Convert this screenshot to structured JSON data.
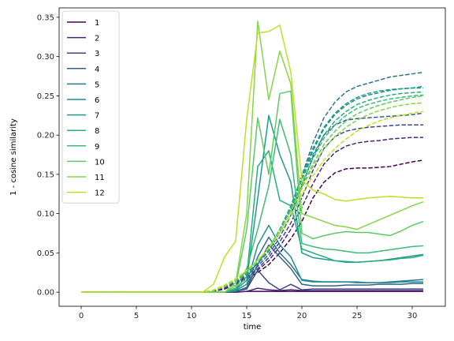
{
  "chart_data": {
    "type": "line",
    "xlabel": "time",
    "ylabel": "1 - cosine similarity",
    "xlim": [
      -2.0,
      33.0
    ],
    "ylim": [
      -0.018,
      0.362
    ],
    "xticks": [
      0,
      5,
      10,
      15,
      20,
      25,
      30
    ],
    "yticks": [
      0.0,
      0.05,
      0.1,
      0.15,
      0.2,
      0.25,
      0.3,
      0.35
    ],
    "ytick_labels": [
      "0.00",
      "0.05",
      "0.10",
      "0.15",
      "0.20",
      "0.25",
      "0.30",
      "0.35"
    ],
    "grid": false,
    "legend_position": "upper-left",
    "x": [
      0,
      1,
      2,
      3,
      4,
      5,
      6,
      7,
      8,
      9,
      10,
      11,
      12,
      13,
      14,
      15,
      16,
      17,
      18,
      19,
      20,
      21,
      22,
      23,
      24,
      25,
      26,
      27,
      28,
      29,
      30,
      31
    ],
    "series": [
      {
        "name": "1",
        "color": "#440154",
        "solid": [
          0,
          0,
          0,
          0,
          0,
          0,
          0,
          0,
          0,
          0,
          0,
          0,
          0,
          0,
          0,
          0.001,
          0.001,
          0.001,
          0.001,
          0.001,
          0.001,
          0.001,
          0.001,
          0.001,
          0.001,
          0.001,
          0.001,
          0.001,
          0.001,
          0.001,
          0.001,
          0.001
        ],
        "dashed": [
          0,
          0,
          0,
          0,
          0,
          0,
          0,
          0,
          0,
          0,
          0,
          0,
          0.001,
          0.004,
          0.01,
          0.017,
          0.025,
          0.035,
          0.05,
          0.068,
          0.09,
          0.12,
          0.14,
          0.152,
          0.157,
          0.158,
          0.158,
          0.159,
          0.16,
          0.163,
          0.166,
          0.168
        ]
      },
      {
        "name": "2",
        "color": "#482475",
        "solid": [
          0,
          0,
          0,
          0,
          0,
          0,
          0,
          0,
          0,
          0,
          0,
          0,
          0,
          0,
          0,
          0.001,
          0.005,
          0.003,
          0.002,
          0.003,
          0.002,
          0.002,
          0.002,
          0.002,
          0.002,
          0.002,
          0.002,
          0.002,
          0.002,
          0.002,
          0.002,
          0.002
        ],
        "dashed": [
          0,
          0,
          0,
          0,
          0,
          0,
          0,
          0,
          0,
          0,
          0,
          0,
          0.002,
          0.005,
          0.011,
          0.019,
          0.028,
          0.04,
          0.058,
          0.08,
          0.108,
          0.138,
          0.163,
          0.178,
          0.186,
          0.19,
          0.192,
          0.193,
          0.195,
          0.196,
          0.197,
          0.197
        ]
      },
      {
        "name": "3",
        "color": "#414487",
        "solid": [
          0,
          0,
          0,
          0,
          0,
          0,
          0,
          0,
          0,
          0,
          0,
          0,
          0,
          0,
          0.001,
          0.004,
          0.028,
          0.012,
          0.003,
          0.01,
          0.003,
          0.004,
          0.004,
          0.004,
          0.004,
          0.004,
          0.004,
          0.004,
          0.004,
          0.004,
          0.004,
          0.004
        ],
        "dashed": [
          0,
          0,
          0,
          0,
          0,
          0,
          0,
          0,
          0,
          0,
          0,
          0,
          0.002,
          0.006,
          0.012,
          0.02,
          0.03,
          0.044,
          0.064,
          0.088,
          0.12,
          0.155,
          0.183,
          0.198,
          0.205,
          0.208,
          0.21,
          0.211,
          0.212,
          0.213,
          0.213,
          0.213
        ]
      },
      {
        "name": "4",
        "color": "#355f8d",
        "solid": [
          0,
          0,
          0,
          0,
          0,
          0,
          0,
          0,
          0,
          0,
          0,
          0,
          0,
          0,
          0.001,
          0.005,
          0.035,
          0.06,
          0.045,
          0.03,
          0.01,
          0.008,
          0.008,
          0.008,
          0.009,
          0.009,
          0.009,
          0.01,
          0.01,
          0.01,
          0.011,
          0.011
        ],
        "dashed": [
          0,
          0,
          0,
          0,
          0,
          0,
          0,
          0,
          0,
          0,
          0,
          0,
          0.002,
          0.006,
          0.013,
          0.022,
          0.033,
          0.048,
          0.07,
          0.098,
          0.135,
          0.172,
          0.2,
          0.213,
          0.219,
          0.221,
          0.222,
          0.223,
          0.224,
          0.225,
          0.226,
          0.228
        ]
      },
      {
        "name": "5",
        "color": "#2c728e",
        "solid": [
          0,
          0,
          0,
          0,
          0,
          0,
          0,
          0,
          0,
          0,
          0,
          0,
          0,
          0,
          0.001,
          0.006,
          0.045,
          0.07,
          0.05,
          0.035,
          0.016,
          0.014,
          0.013,
          0.013,
          0.013,
          0.012,
          0.012,
          0.012,
          0.013,
          0.014,
          0.015,
          0.016
        ],
        "dashed": [
          0,
          0,
          0,
          0,
          0,
          0,
          0,
          0,
          0,
          0,
          0,
          0,
          0.002,
          0.007,
          0.014,
          0.024,
          0.036,
          0.052,
          0.076,
          0.106,
          0.148,
          0.19,
          0.222,
          0.242,
          0.255,
          0.262,
          0.266,
          0.27,
          0.274,
          0.276,
          0.278,
          0.28
        ]
      },
      {
        "name": "6",
        "color": "#21918c",
        "solid": [
          0,
          0,
          0,
          0,
          0,
          0,
          0,
          0,
          0,
          0,
          0,
          0,
          0,
          0,
          0.002,
          0.01,
          0.06,
          0.085,
          0.06,
          0.045,
          0.015,
          0.013,
          0.013,
          0.013,
          0.013,
          0.013,
          0.012,
          0.012,
          0.012,
          0.013,
          0.013,
          0.013
        ],
        "dashed": [
          0,
          0,
          0,
          0,
          0,
          0,
          0,
          0,
          0,
          0,
          0,
          0,
          0.002,
          0.007,
          0.015,
          0.025,
          0.037,
          0.054,
          0.078,
          0.108,
          0.145,
          0.18,
          0.208,
          0.226,
          0.238,
          0.246,
          0.251,
          0.254,
          0.257,
          0.259,
          0.26,
          0.262
        ]
      },
      {
        "name": "7",
        "color": "#1e9b8a",
        "solid": [
          0,
          0,
          0,
          0,
          0,
          0,
          0,
          0,
          0,
          0,
          0,
          0,
          0,
          0,
          0.003,
          0.015,
          0.12,
          0.225,
          0.175,
          0.14,
          0.05,
          0.044,
          0.042,
          0.04,
          0.038,
          0.038,
          0.039,
          0.04,
          0.042,
          0.044,
          0.046,
          0.048
        ],
        "dashed": [
          0,
          0,
          0,
          0,
          0,
          0,
          0,
          0,
          0,
          0,
          0,
          0,
          0.002,
          0.007,
          0.015,
          0.025,
          0.038,
          0.055,
          0.08,
          0.11,
          0.148,
          0.183,
          0.21,
          0.228,
          0.24,
          0.248,
          0.253,
          0.256,
          0.258,
          0.259,
          0.26,
          0.26
        ]
      },
      {
        "name": "8",
        "color": "#26ad81",
        "solid": [
          0,
          0,
          0,
          0,
          0,
          0,
          0,
          0,
          0,
          0,
          0,
          0,
          0,
          0,
          0.004,
          0.02,
          0.16,
          0.18,
          0.117,
          0.11,
          0.055,
          0.05,
          0.045,
          0.04,
          0.039,
          0.038,
          0.039,
          0.04,
          0.041,
          0.043,
          0.044,
          0.047
        ],
        "dashed": [
          0,
          0,
          0,
          0,
          0,
          0,
          0,
          0,
          0,
          0,
          0,
          0,
          0.002,
          0.007,
          0.015,
          0.026,
          0.039,
          0.056,
          0.08,
          0.108,
          0.143,
          0.175,
          0.2,
          0.218,
          0.23,
          0.239,
          0.244,
          0.248,
          0.251,
          0.253,
          0.254,
          0.255
        ]
      },
      {
        "name": "9",
        "color": "#3bbb75",
        "solid": [
          0,
          0,
          0,
          0,
          0,
          0,
          0,
          0,
          0,
          0,
          0,
          0,
          0,
          0,
          0.005,
          0.03,
          0.08,
          0.135,
          0.22,
          0.175,
          0.062,
          0.058,
          0.055,
          0.054,
          0.052,
          0.05,
          0.05,
          0.052,
          0.054,
          0.056,
          0.058,
          0.059
        ],
        "dashed": [
          0,
          0,
          0,
          0,
          0,
          0,
          0,
          0,
          0,
          0,
          0,
          0,
          0.002,
          0.007,
          0.015,
          0.026,
          0.039,
          0.055,
          0.078,
          0.105,
          0.138,
          0.17,
          0.196,
          0.213,
          0.225,
          0.234,
          0.239,
          0.243,
          0.246,
          0.248,
          0.25,
          0.251
        ]
      },
      {
        "name": "10",
        "color": "#5ec962",
        "solid": [
          0,
          0,
          0,
          0,
          0,
          0,
          0,
          0,
          0,
          0,
          0,
          0,
          0,
          0,
          0.008,
          0.08,
          0.222,
          0.15,
          0.253,
          0.256,
          0.075,
          0.068,
          0.072,
          0.075,
          0.077,
          0.076,
          0.076,
          0.074,
          0.072,
          0.078,
          0.085,
          0.09
        ],
        "dashed": [
          0,
          0,
          0,
          0,
          0,
          0,
          0,
          0,
          0,
          0,
          0,
          0,
          0.002,
          0.007,
          0.015,
          0.026,
          0.039,
          0.055,
          0.077,
          0.103,
          0.134,
          0.163,
          0.188,
          0.205,
          0.218,
          0.227,
          0.233,
          0.238,
          0.242,
          0.245,
          0.248,
          0.25
        ]
      },
      {
        "name": "11",
        "color": "#86d549",
        "solid": [
          0,
          0,
          0,
          0,
          0,
          0,
          0,
          0,
          0,
          0,
          0,
          0,
          0,
          0,
          0.012,
          0.1,
          0.345,
          0.245,
          0.307,
          0.265,
          0.1,
          0.095,
          0.09,
          0.085,
          0.083,
          0.08,
          0.086,
          0.092,
          0.098,
          0.104,
          0.11,
          0.115
        ],
        "dashed": [
          0,
          0,
          0,
          0,
          0,
          0,
          0,
          0,
          0,
          0,
          0,
          0,
          0.002,
          0.008,
          0.016,
          0.027,
          0.04,
          0.057,
          0.078,
          0.103,
          0.132,
          0.16,
          0.182,
          0.198,
          0.21,
          0.219,
          0.226,
          0.231,
          0.235,
          0.238,
          0.24,
          0.241
        ]
      },
      {
        "name": "12",
        "color": "#bddf26",
        "solid": [
          0,
          0,
          0,
          0,
          0,
          0,
          0,
          0,
          0,
          0,
          0,
          0,
          0.01,
          0.045,
          0.065,
          0.22,
          0.33,
          0.332,
          0.34,
          0.28,
          0.143,
          0.13,
          0.125,
          0.118,
          0.116,
          0.118,
          0.12,
          0.121,
          0.122,
          0.121,
          0.12,
          0.12
        ],
        "dashed": [
          0,
          0,
          0,
          0,
          0,
          0,
          0,
          0,
          0,
          0,
          0,
          0,
          0.003,
          0.009,
          0.017,
          0.028,
          0.041,
          0.056,
          0.075,
          0.098,
          0.124,
          0.148,
          0.168,
          0.183,
          0.195,
          0.205,
          0.212,
          0.218,
          0.222,
          0.225,
          0.228,
          0.23
        ]
      }
    ]
  }
}
